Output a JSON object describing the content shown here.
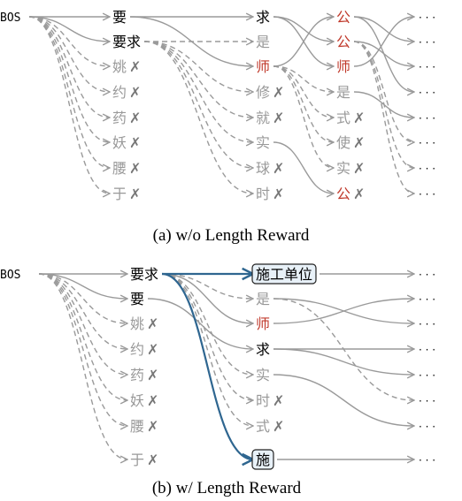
{
  "colors": {
    "black": "#000000",
    "gray": "#999999",
    "red": "#c0392b",
    "blue": "#2f6690",
    "edge": "#9a9a9a"
  },
  "bos": "BOS",
  "ellipsis": "· · ·",
  "reject_mark": "✗",
  "panel_a": {
    "caption": "(a) w/o Length Reward",
    "col1": [
      {
        "text": "要",
        "color": "black"
      },
      {
        "text": "要求",
        "color": "black"
      },
      {
        "text": "姚",
        "color": "gray",
        "reject": true
      },
      {
        "text": "约",
        "color": "gray",
        "reject": true
      },
      {
        "text": "药",
        "color": "gray",
        "reject": true
      },
      {
        "text": "妖",
        "color": "gray",
        "reject": true
      },
      {
        "text": "腰",
        "color": "gray",
        "reject": true
      },
      {
        "text": "于",
        "color": "gray",
        "reject": true
      }
    ],
    "col2": [
      {
        "text": "求",
        "color": "black"
      },
      {
        "text": "是",
        "color": "gray"
      },
      {
        "text": "师",
        "color": "red"
      },
      {
        "text": "修",
        "color": "gray",
        "reject": true
      },
      {
        "text": "就",
        "color": "gray",
        "reject": true
      },
      {
        "text": "实",
        "color": "gray"
      },
      {
        "text": "球",
        "color": "gray",
        "reject": true
      },
      {
        "text": "时",
        "color": "gray",
        "reject": true
      }
    ],
    "col3": [
      {
        "text": "公",
        "color": "red"
      },
      {
        "text": "公",
        "color": "red"
      },
      {
        "text": "师",
        "color": "red"
      },
      {
        "text": "是",
        "color": "gray"
      },
      {
        "text": "式",
        "color": "gray",
        "reject": true
      },
      {
        "text": "使",
        "color": "gray",
        "reject": true
      },
      {
        "text": "实",
        "color": "gray",
        "reject": true
      },
      {
        "text": "公",
        "color": "red",
        "reject": true
      }
    ]
  },
  "panel_b": {
    "caption": "(b) w/ Length Reward",
    "col1": [
      {
        "text": "要求",
        "color": "black"
      },
      {
        "text": "要",
        "color": "black"
      },
      {
        "text": "姚",
        "color": "gray",
        "reject": true
      },
      {
        "text": "约",
        "color": "gray",
        "reject": true
      },
      {
        "text": "药",
        "color": "gray",
        "reject": true
      },
      {
        "text": "妖",
        "color": "gray",
        "reject": true
      },
      {
        "text": "腰",
        "color": "gray",
        "reject": true
      },
      {
        "text": "于",
        "color": "gray",
        "reject": true
      }
    ],
    "col2": [
      {
        "text": "施工单位",
        "color": "blue_box"
      },
      {
        "text": "是",
        "color": "gray"
      },
      {
        "text": "师",
        "color": "red"
      },
      {
        "text": "求",
        "color": "black"
      },
      {
        "text": "实",
        "color": "gray"
      },
      {
        "text": "时",
        "color": "gray",
        "reject": true
      },
      {
        "text": "式",
        "color": "gray",
        "reject": true
      },
      {
        "text": "施",
        "color": "blue_box"
      }
    ]
  }
}
